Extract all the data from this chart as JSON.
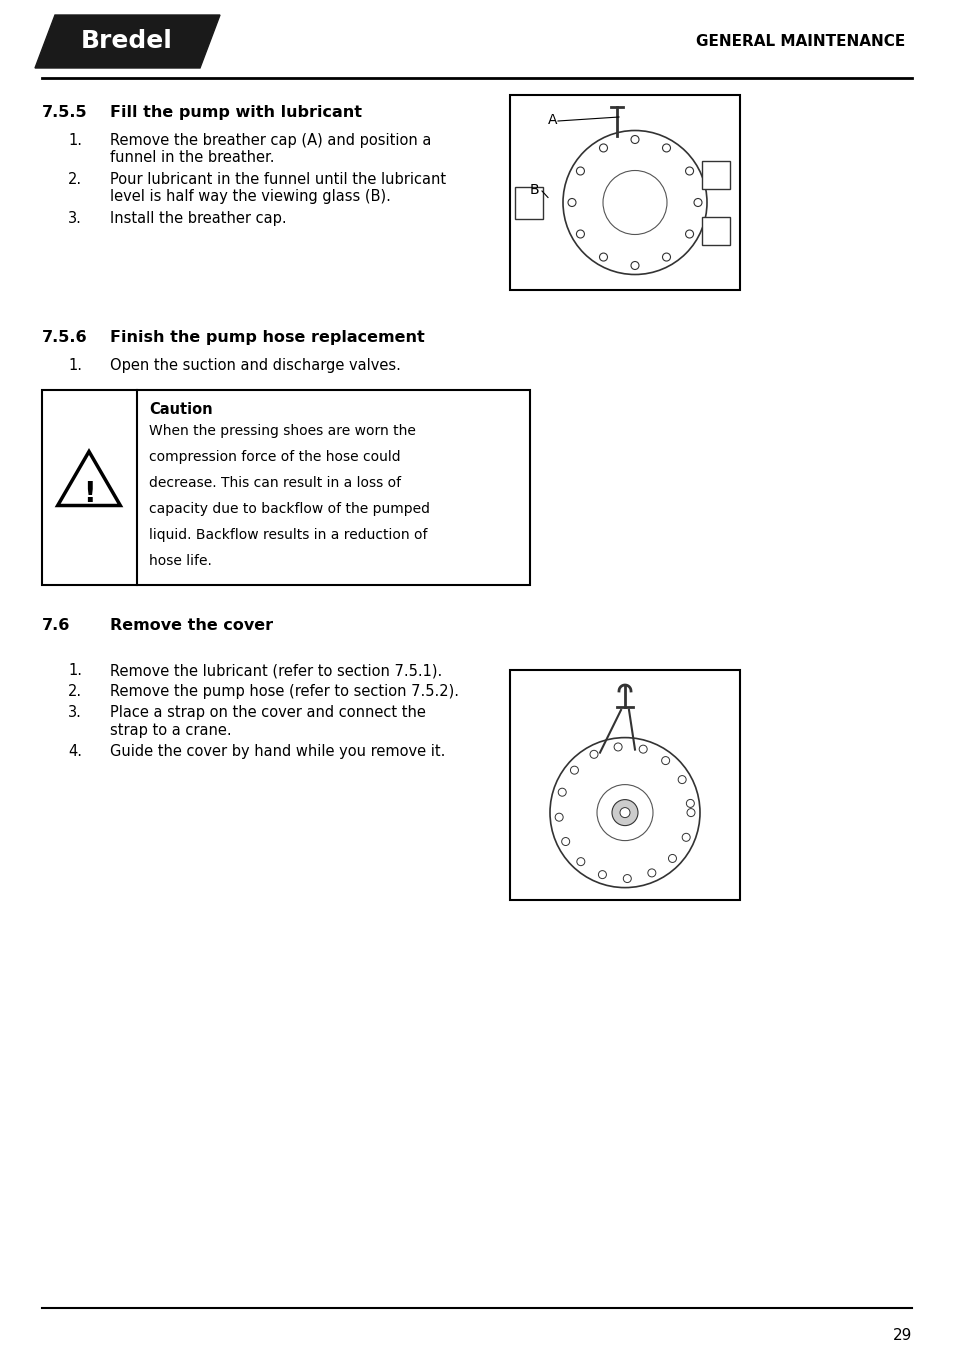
{
  "page_bg": "#ffffff",
  "logo_text": "Bredel",
  "logo_bg": "#1a1a1a",
  "header_right": "GENERAL MAINTENANCE",
  "section_755_num": "7.5.5",
  "section_755_title": "Fill the pump with lubricant",
  "section_755_items": [
    "Remove the breather cap (A) and position a\nfunnel in the breather.",
    "Pour lubricant in the funnel until the lubricant\nlevel is half way the viewing glass (B).",
    "Install the breather cap."
  ],
  "section_756_num": "7.5.6",
  "section_756_title": "Finish the pump hose replacement",
  "section_756_items": [
    "Open the suction and discharge valves."
  ],
  "caution_title": "Caution",
  "caution_text": "When the pressing shoes are worn the\ncompression force of the hose could\ndecrease. This can result in a loss of\ncapacity due to backflow of the pumped\nliquid. Backflow results in a reduction of\nhose life.",
  "section_76_num": "7.6",
  "section_76_title": "Remove the cover",
  "section_76_items": [
    "Remove the lubricant (refer to section 7.5.1).",
    "Remove the pump hose (refer to section 7.5.2).",
    "Place a strap on the cover and connect the\nstrap to a crane.",
    "Guide the cover by hand while you remove it."
  ],
  "page_number": "29",
  "text_color": "#000000",
  "border_color": "#000000",
  "font_size_body": 10.5,
  "font_size_section": 11.5,
  "font_size_header": 11
}
